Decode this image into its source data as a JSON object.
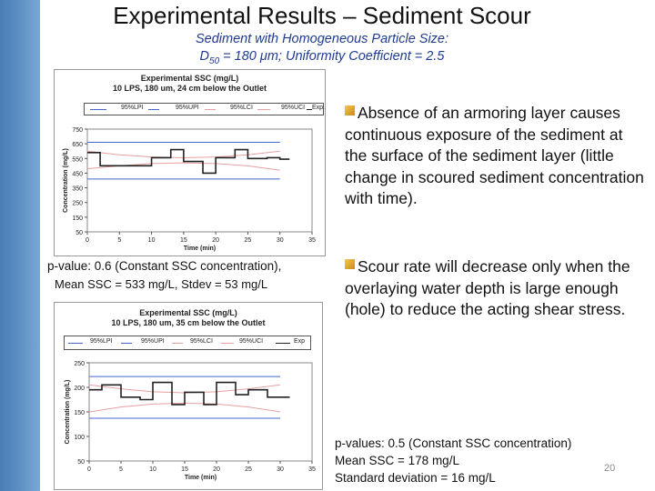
{
  "slide": {
    "title": "Experimental Results – Sediment Scour",
    "subtitle_line1": "Sediment with Homogeneous Particle Size:",
    "subtitle_line2": "D50 = 180 μm; Uniformity Coefficient = 2.5",
    "page_number": "20",
    "colors": {
      "sidebar": "#5d90c4",
      "subtitle": "#1f3b8f",
      "bullet": "#e0a838"
    }
  },
  "bullets": [
    "Absence of an armoring layer causes continuous exposure of the sediment at the surface of the sediment layer (little change in scoured sediment concentration with time).",
    "Scour rate will decrease only when the overlaying water depth is large enough (hole) to reduce the acting shear stress."
  ],
  "notes": {
    "chart1_line1": "p-value: 0.6 (Constant SSC concentration),",
    "chart1_line2": "Mean SSC = 533 mg/L, Stdev = 53 mg/L",
    "chart2_line1": "p-values: 0.5 (Constant SSC concentration)",
    "chart2_line2": "Mean SSC = 178 mg/L",
    "chart2_line3": "Standard deviation = 16 mg/L"
  },
  "chart_data": [
    {
      "type": "line",
      "title": "Experimental SSC (mg/L)",
      "subtitle": "10 LPS, 180 um, 24 cm below the Outlet",
      "xlabel": "Time (min)",
      "ylabel": "Concentration (mg/L)",
      "xlim": [
        0,
        35
      ],
      "ylim": [
        50,
        750
      ],
      "xticks": [
        0,
        5,
        10,
        15,
        20,
        25,
        30,
        35
      ],
      "yticks": [
        50,
        150,
        250,
        350,
        450,
        550,
        650,
        750
      ],
      "legend": [
        "95%LPI",
        "95%UPI",
        "95%LCI",
        "95%UCI",
        "Exp."
      ],
      "legend_placement": "top",
      "series": [
        {
          "name": "95%LPI",
          "color": "#4466cc",
          "x": [
            0,
            5,
            10,
            15,
            20,
            25,
            30
          ],
          "values": [
            410,
            410,
            410,
            410,
            410,
            410,
            410
          ]
        },
        {
          "name": "95%UPI",
          "color": "#4466cc",
          "x": [
            0,
            5,
            10,
            15,
            20,
            25,
            30
          ],
          "values": [
            660,
            660,
            660,
            660,
            660,
            660,
            660
          ]
        },
        {
          "name": "95%LCI",
          "color": "#e8a0a0",
          "x": [
            0,
            5,
            10,
            15,
            20,
            25,
            30
          ],
          "values": [
            480,
            500,
            515,
            520,
            515,
            500,
            470
          ]
        },
        {
          "name": "95%UCI",
          "color": "#e8a0a0",
          "x": [
            0,
            5,
            10,
            15,
            20,
            25,
            30
          ],
          "values": [
            600,
            575,
            560,
            555,
            560,
            575,
            600
          ]
        },
        {
          "name": "Exp.",
          "color": "#222222",
          "step": true,
          "x": [
            0,
            2,
            5,
            8,
            10,
            13,
            15,
            18,
            20,
            23,
            25,
            28,
            30,
            31.5
          ],
          "values": [
            590,
            500,
            500,
            500,
            555,
            610,
            530,
            450,
            555,
            610,
            550,
            555,
            545,
            545
          ]
        }
      ]
    },
    {
      "type": "line",
      "title": "Experimental SSC (mg/L)",
      "subtitle": "10 LPS, 180 um, 35 cm below the Outlet",
      "xlabel": "Time (min)",
      "ylabel": "Concentration (mg/L)",
      "xlim": [
        0,
        35
      ],
      "ylim": [
        50,
        250
      ],
      "xticks": [
        0,
        5,
        10,
        15,
        20,
        25,
        30,
        35
      ],
      "yticks": [
        50,
        100,
        150,
        200,
        250
      ],
      "legend": [
        "95%LPI",
        "95%UPI",
        "95%LCI",
        "95%UCI",
        "Exp"
      ],
      "legend_placement": "top",
      "series": [
        {
          "name": "95%LPI",
          "color": "#4466cc",
          "x": [
            0,
            5,
            10,
            15,
            20,
            25,
            30
          ],
          "values": [
            137,
            137,
            137,
            137,
            137,
            137,
            137
          ]
        },
        {
          "name": "95%UPI",
          "color": "#4466cc",
          "x": [
            0,
            5,
            10,
            15,
            20,
            25,
            30
          ],
          "values": [
            222,
            222,
            222,
            222,
            222,
            222,
            222
          ]
        },
        {
          "name": "95%LCI",
          "color": "#e8a0a0",
          "x": [
            0,
            5,
            10,
            15,
            20,
            25,
            30
          ],
          "values": [
            150,
            160,
            166,
            168,
            166,
            160,
            150
          ]
        },
        {
          "name": "95%UCI",
          "color": "#e8a0a0",
          "x": [
            0,
            5,
            10,
            15,
            20,
            25,
            30
          ],
          "values": [
            205,
            197,
            191,
            189,
            191,
            197,
            205
          ]
        },
        {
          "name": "Exp",
          "color": "#222222",
          "step": true,
          "x": [
            0,
            2,
            5,
            8,
            10,
            13,
            15,
            18,
            20,
            23,
            25,
            28,
            30,
            31.5
          ],
          "values": [
            195,
            205,
            180,
            175,
            210,
            165,
            190,
            165,
            210,
            185,
            195,
            180,
            180,
            180
          ]
        }
      ]
    }
  ]
}
